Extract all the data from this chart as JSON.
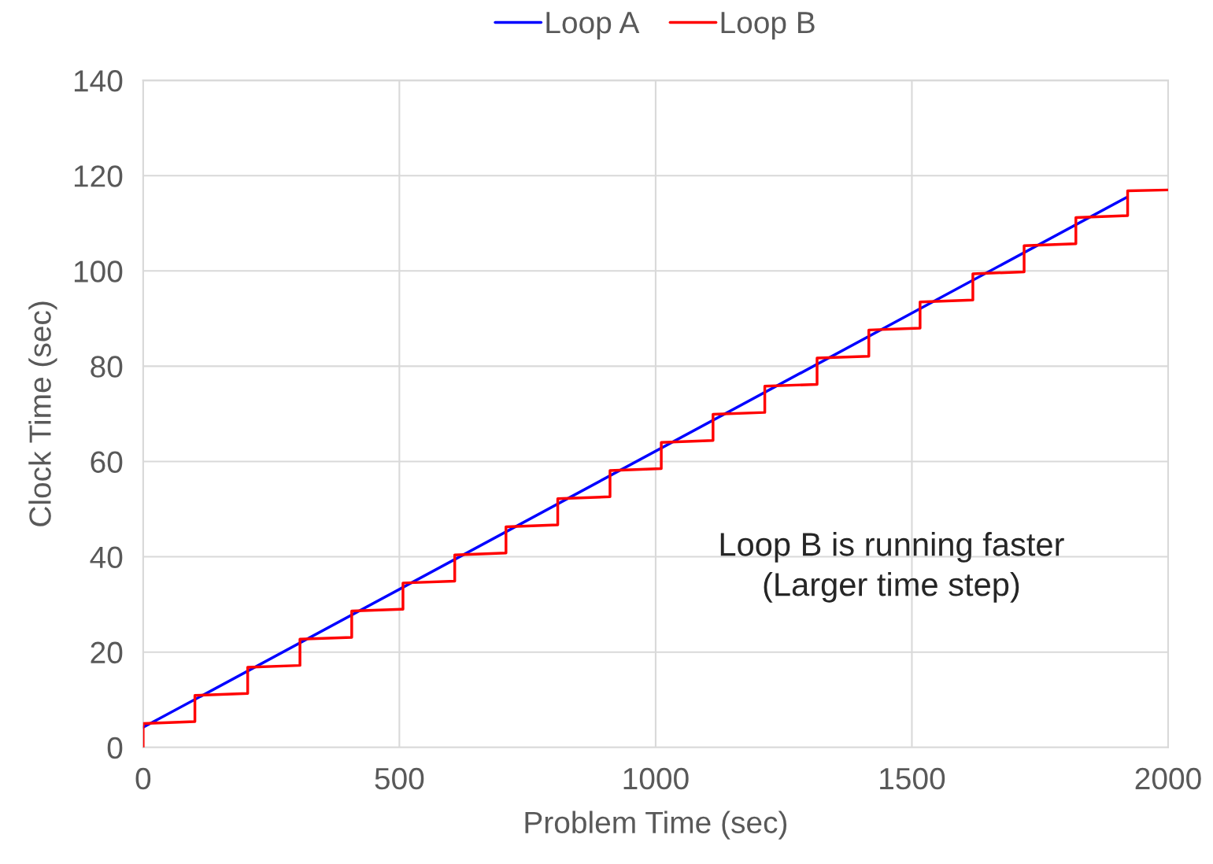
{
  "chart_data": {
    "type": "line",
    "xlabel": "Problem Time (sec)",
    "ylabel": "Clock Time (sec)",
    "xlim": [
      0,
      2000
    ],
    "xticks": [
      0,
      500,
      1000,
      1500,
      2000
    ],
    "ylim": [
      0,
      140
    ],
    "yticks": [
      0,
      20,
      40,
      60,
      80,
      100,
      120,
      140
    ],
    "grid": true,
    "legend": "top",
    "line_style": "solid",
    "marker": "none",
    "annotations": [
      "Loop B is running faster\n(Larger time step)"
    ],
    "series": [
      {
        "name": "Loop A",
        "color": "#0000ff",
        "x": [
          0,
          1920
        ],
        "values": [
          4.2,
          115.5
        ]
      },
      {
        "name": "Loop B",
        "color": "#ff0000",
        "x": [
          0,
          0,
          101,
          101,
          204,
          204,
          306,
          306,
          407,
          407,
          507,
          507,
          608,
          608,
          708,
          708,
          809,
          809,
          911,
          911,
          1011,
          1011,
          1112,
          1112,
          1213,
          1213,
          1315,
          1315,
          1416,
          1416,
          1516,
          1516,
          1619,
          1619,
          1719,
          1719,
          1820,
          1820,
          1921,
          1921,
          2000
        ],
        "values": [
          0,
          5.0,
          5.4,
          10.9,
          11.3,
          16.8,
          17.2,
          22.7,
          23.1,
          28.6,
          29.0,
          34.5,
          34.9,
          40.4,
          40.8,
          46.3,
          46.7,
          52.2,
          52.6,
          58.1,
          58.5,
          64.0,
          64.4,
          69.9,
          70.3,
          75.8,
          76.2,
          81.7,
          82.1,
          87.6,
          88.0,
          93.5,
          93.9,
          99.4,
          99.8,
          105.3,
          105.7,
          111.2,
          111.6,
          116.8,
          117.0
        ]
      }
    ]
  }
}
